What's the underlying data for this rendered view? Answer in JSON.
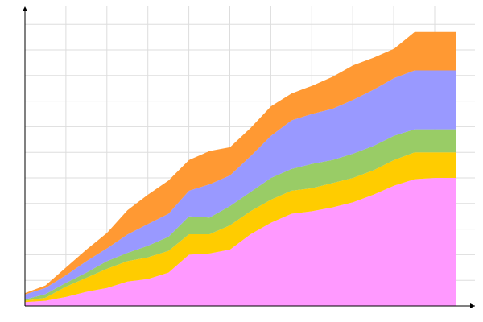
{
  "chart_data": {
    "type": "area",
    "stacked": true,
    "title": "",
    "xlabel": "",
    "ylabel": "",
    "grid": true,
    "legend": "none",
    "xlim": [
      0,
      21
    ],
    "ylim": [
      0,
      11.7
    ],
    "x": [
      0,
      1,
      2,
      3,
      4,
      5,
      6,
      7,
      8,
      9,
      10,
      11,
      12,
      13,
      14,
      15,
      16,
      17,
      18,
      19,
      20,
      21
    ],
    "series": [
      {
        "color": "#ff99ff",
        "values": [
          0.15,
          0.2,
          0.35,
          0.55,
          0.7,
          0.95,
          1.05,
          1.3,
          2.0,
          2.05,
          2.2,
          2.8,
          3.25,
          3.6,
          3.7,
          3.85,
          4.05,
          4.35,
          4.7,
          4.95,
          5.0,
          5.0
        ]
      },
      {
        "color": "#ffcc00",
        "values": [
          0.05,
          0.12,
          0.4,
          0.55,
          0.75,
          0.8,
          0.85,
          0.85,
          0.8,
          0.75,
          0.95,
          0.9,
          0.9,
          0.9,
          0.9,
          0.95,
          0.95,
          0.95,
          1.0,
          1.05,
          1.0,
          1.0
        ]
      },
      {
        "color": "#99cc66",
        "values": [
          0.05,
          0.14,
          0.15,
          0.2,
          0.3,
          0.32,
          0.45,
          0.55,
          0.7,
          0.65,
          0.75,
          0.75,
          0.85,
          0.85,
          0.95,
          0.9,
          0.95,
          0.95,
          0.95,
          0.9,
          0.9,
          0.9
        ]
      },
      {
        "color": "#9999ff",
        "values": [
          0.2,
          0.24,
          0.3,
          0.45,
          0.5,
          0.72,
          0.85,
          0.9,
          1.0,
          1.3,
          1.2,
          1.4,
          1.65,
          1.9,
          1.95,
          2.0,
          2.1,
          2.2,
          2.25,
          2.3,
          2.3,
          2.3
        ]
      },
      {
        "color": "#ff9933",
        "values": [
          0.05,
          0.1,
          0.3,
          0.45,
          0.6,
          0.95,
          1.15,
          1.3,
          1.2,
          1.3,
          1.1,
          1.1,
          1.15,
          1.05,
          1.1,
          1.25,
          1.35,
          1.25,
          1.15,
          1.5,
          1.5,
          1.5
        ]
      }
    ]
  }
}
